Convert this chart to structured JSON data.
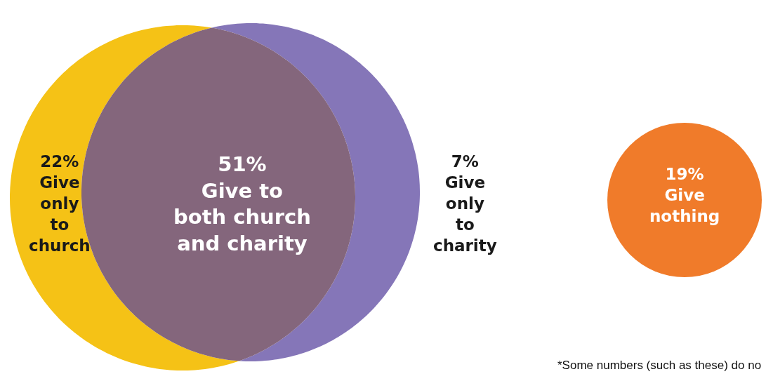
{
  "chart_data": {
    "type": "other",
    "categories": [
      "Give\nonly\nto\nchurch",
      "Give to\nboth church\nand charity",
      "Give\nonly\nto\ncharity",
      "Give\nnothing"
    ],
    "values": [
      22,
      51,
      7,
      19
    ],
    "value_labels": [
      "22%",
      "51%",
      "7%",
      "19%"
    ],
    "colors": [
      "#f5c216",
      "#84667c",
      "#8576b8",
      "#f07b2a"
    ],
    "annotations": [
      "*Some numbers (such as these) do no"
    ]
  }
}
